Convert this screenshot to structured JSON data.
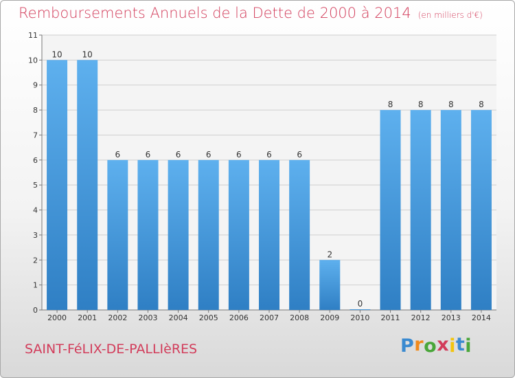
{
  "chart_data": {
    "type": "bar",
    "title": "Remboursements Annuels de la Dette de 2000 à 2014",
    "unit_label": "(en milliers d'€)",
    "categories": [
      "2000",
      "2001",
      "2002",
      "2003",
      "2004",
      "2005",
      "2006",
      "2007",
      "2008",
      "2009",
      "2010",
      "2011",
      "2012",
      "2013",
      "2014"
    ],
    "values": [
      10,
      10,
      6,
      6,
      6,
      6,
      6,
      6,
      6,
      2,
      0,
      8,
      8,
      8,
      8
    ],
    "ylim": [
      0,
      11
    ],
    "yticks": [
      0,
      1,
      2,
      3,
      4,
      5,
      6,
      7,
      8,
      9,
      10,
      11
    ],
    "grid": true,
    "bar_color": "#4a9be0"
  },
  "commune": "SAINT-FéLIX-DE-PALLIèRES",
  "logo": {
    "letters": [
      "P",
      "r",
      "o",
      "x",
      "i",
      "t",
      "i"
    ],
    "colors": [
      "#3a8ad0",
      "#f08a1c",
      "#4aa63a",
      "#d23c5a",
      "#f2c40f",
      "#3a8ad0",
      "#4aa63a"
    ]
  }
}
